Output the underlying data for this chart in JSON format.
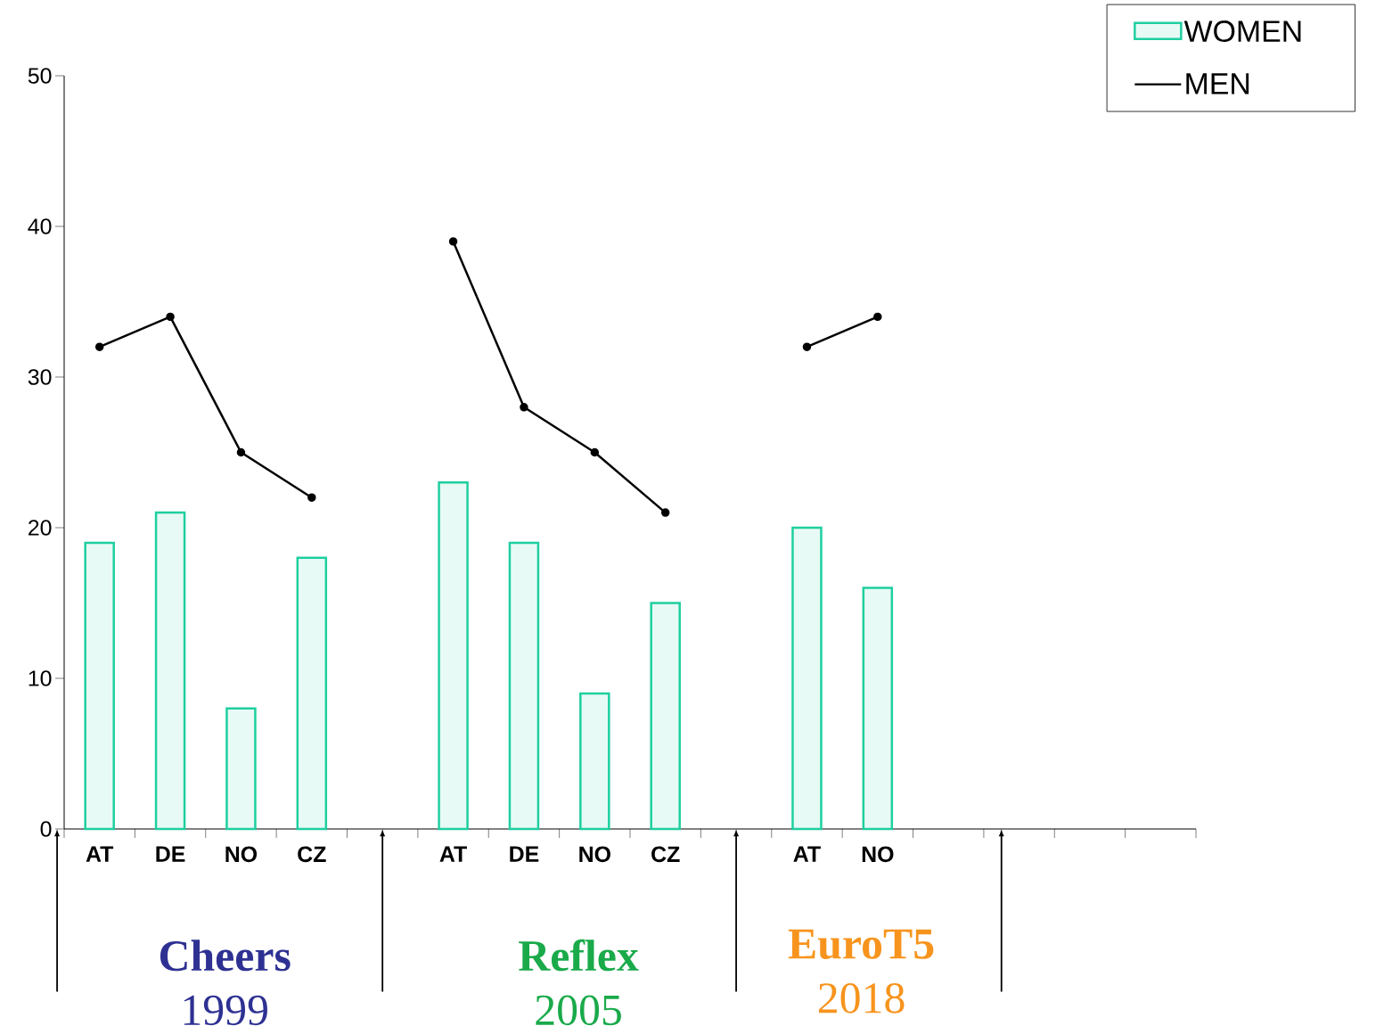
{
  "chart_data": {
    "type": "bar",
    "categories": [
      "AT",
      "DE",
      "NO",
      "CZ",
      null,
      "AT",
      "DE",
      "NO",
      "CZ",
      null,
      "AT",
      "NO",
      null,
      null,
      null,
      null
    ],
    "series": [
      {
        "name": "WOMEN",
        "color": "#1ecf9f",
        "values": [
          19,
          21,
          8,
          18,
          null,
          23,
          19,
          9,
          15,
          null,
          20,
          16,
          null,
          null,
          null,
          null
        ]
      },
      {
        "name": "MEN",
        "type": "line",
        "color": "#000000",
        "values": [
          32,
          34,
          25,
          22,
          null,
          39,
          28,
          25,
          21,
          null,
          32,
          34,
          null,
          null,
          null,
          null
        ]
      }
    ],
    "ylim": [
      0,
      50
    ],
    "yticks": [
      0,
      10,
      20,
      30,
      40,
      50
    ],
    "legend": "top right",
    "marker": "circle",
    "annotations": [
      "Cheers",
      "1999",
      "Reflex",
      "2005",
      "EuroT5",
      "2018"
    ]
  }
}
